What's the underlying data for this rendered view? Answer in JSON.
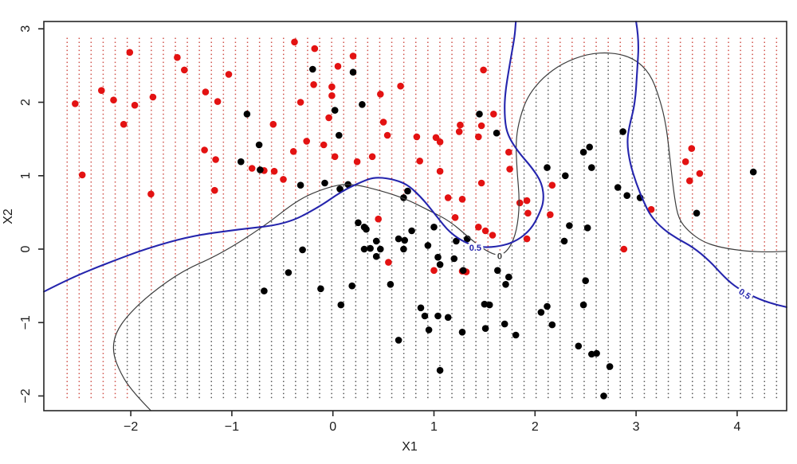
{
  "chart_data": {
    "type": "scatter",
    "description": "Two-class scatter plot with classification grid dots and two decision-boundary contours",
    "x_axis": {
      "label": "X1",
      "range": [
        -2.86,
        4.49
      ],
      "ticks": [
        -2,
        -1,
        0,
        1,
        2,
        3,
        4
      ],
      "tick_labels": [
        "−2",
        "−1",
        "0",
        "1",
        "2",
        "3",
        "4"
      ]
    },
    "y_axis": {
      "label": "X2",
      "range": [
        -2.2,
        3.1
      ],
      "ticks": [
        -2,
        -1,
        0,
        1,
        2,
        3
      ],
      "tick_labels": [
        "−2",
        "−1",
        "0",
        "1",
        "2",
        "3"
      ]
    },
    "grid": {
      "x0": -2.63,
      "x1": 4.39,
      "cols": 60,
      "y0": -2.02,
      "y1": 2.87,
      "rows": 91,
      "red_color": "#d0524a",
      "black_color": "#565656"
    },
    "series": [
      {
        "name": "class-red",
        "color": "#e31212",
        "points": [
          [
            -2.55,
            1.98
          ],
          [
            -2.48,
            1.01
          ],
          [
            -2.29,
            2.16
          ],
          [
            -2.17,
            2.03
          ],
          [
            -2.07,
            1.7
          ],
          [
            -2.01,
            2.68
          ],
          [
            -1.96,
            1.96
          ],
          [
            -1.8,
            0.75
          ],
          [
            -1.78,
            2.07
          ],
          [
            -1.54,
            2.61
          ],
          [
            -1.47,
            2.44
          ],
          [
            -1.27,
            1.35
          ],
          [
            -1.26,
            2.14
          ],
          [
            -1.17,
            0.8
          ],
          [
            -1.16,
            1.22
          ],
          [
            -1.14,
            2.01
          ],
          [
            -1.03,
            2.38
          ],
          [
            -0.8,
            1.1
          ],
          [
            -0.68,
            1.07
          ],
          [
            -0.58,
            1.06
          ],
          [
            -0.49,
            0.95
          ],
          [
            -0.59,
            1.7
          ],
          [
            -0.39,
            1.33
          ],
          [
            -0.38,
            2.82
          ],
          [
            -0.32,
            2.0
          ],
          [
            -0.26,
            1.47
          ],
          [
            -0.19,
            2.24
          ],
          [
            -0.18,
            2.73
          ],
          [
            -0.09,
            1.42
          ],
          [
            -0.04,
            1.79
          ],
          [
            -0.01,
            2.21
          ],
          [
            -0.01,
            2.09
          ],
          [
            0.02,
            1.26
          ],
          [
            0.05,
            2.49
          ],
          [
            0.2,
            2.63
          ],
          [
            0.24,
            1.19
          ],
          [
            0.39,
            1.26
          ],
          [
            0.45,
            0.41
          ],
          [
            0.47,
            2.11
          ],
          [
            0.5,
            1.73
          ],
          [
            0.54,
            1.55
          ],
          [
            0.55,
            -0.18
          ],
          [
            0.67,
            2.22
          ],
          [
            0.83,
            1.53
          ],
          [
            0.86,
            1.2
          ],
          [
            1.0,
            -0.29
          ],
          [
            1.02,
            1.52
          ],
          [
            1.06,
            1.46
          ],
          [
            1.06,
            1.06
          ],
          [
            1.14,
            0.7
          ],
          [
            1.21,
            0.43
          ],
          [
            1.25,
            1.6
          ],
          [
            1.26,
            1.69
          ],
          [
            1.28,
            0.68
          ],
          [
            1.28,
            -0.3
          ],
          [
            1.32,
            -0.31
          ],
          [
            1.44,
            1.53
          ],
          [
            1.44,
            0.3
          ],
          [
            1.47,
            1.68
          ],
          [
            1.47,
            0.9
          ],
          [
            1.49,
            2.44
          ],
          [
            1.51,
            0.25
          ],
          [
            1.58,
            0.19
          ],
          [
            1.59,
            1.84
          ],
          [
            1.74,
            1.32
          ],
          [
            1.75,
            1.09
          ],
          [
            1.85,
            0.63
          ],
          [
            1.92,
            0.66
          ],
          [
            1.93,
            0.49
          ],
          [
            1.92,
            0.14
          ],
          [
            2.15,
            0.47
          ],
          [
            2.17,
            0.87
          ],
          [
            2.88,
            0.0
          ],
          [
            3.15,
            0.54
          ],
          [
            3.49,
            1.19
          ],
          [
            3.53,
            0.93
          ],
          [
            3.55,
            1.37
          ],
          [
            3.63,
            1.03
          ]
        ]
      },
      {
        "name": "class-black",
        "color": "#000000",
        "points": [
          [
            -0.91,
            1.19
          ],
          [
            -0.85,
            1.84
          ],
          [
            -0.73,
            1.42
          ],
          [
            -0.72,
            1.08
          ],
          [
            -0.32,
            0.87
          ],
          [
            -0.2,
            2.45
          ],
          [
            -0.08,
            0.9
          ],
          [
            0.02,
            1.89
          ],
          [
            0.06,
            1.55
          ],
          [
            0.07,
            0.82
          ],
          [
            0.15,
            0.88
          ],
          [
            0.2,
            2.41
          ],
          [
            0.29,
            1.97
          ],
          [
            0.25,
            0.36
          ],
          [
            0.31,
            0.3
          ],
          [
            0.33,
            0.27
          ],
          [
            0.43,
            0.11
          ],
          [
            0.47,
            0.0
          ],
          [
            0.37,
            0.01
          ],
          [
            0.31,
            0.0
          ],
          [
            0.43,
            -0.1
          ],
          [
            0.57,
            -0.48
          ],
          [
            0.65,
            0.14
          ],
          [
            0.7,
            0.7
          ],
          [
            0.71,
            0.12
          ],
          [
            0.74,
            0.79
          ],
          [
            0.78,
            0.25
          ],
          [
            0.7,
            0.0
          ],
          [
            0.65,
            -1.24
          ],
          [
            0.87,
            -0.8
          ],
          [
            0.91,
            -0.91
          ],
          [
            0.94,
            0.05
          ],
          [
            0.95,
            -1.1
          ],
          [
            1.0,
            0.3
          ],
          [
            1.04,
            -0.11
          ],
          [
            1.06,
            -0.21
          ],
          [
            1.04,
            -0.91
          ],
          [
            1.06,
            -1.65
          ],
          [
            1.14,
            -0.93
          ],
          [
            1.2,
            -0.13
          ],
          [
            1.22,
            0.11
          ],
          [
            1.29,
            -0.29
          ],
          [
            1.28,
            -1.13
          ],
          [
            1.33,
            0.14
          ],
          [
            1.45,
            1.84
          ],
          [
            1.5,
            -0.75
          ],
          [
            1.51,
            -1.08
          ],
          [
            1.55,
            -0.76
          ],
          [
            1.62,
            1.58
          ],
          [
            1.63,
            -0.29
          ],
          [
            1.71,
            -0.48
          ],
          [
            1.7,
            -1.02
          ],
          [
            1.74,
            -0.38
          ],
          [
            1.81,
            -1.17
          ],
          [
            2.12,
            1.11
          ],
          [
            2.3,
            1.0
          ],
          [
            2.54,
            1.39
          ],
          [
            2.48,
            1.32
          ],
          [
            2.56,
            1.11
          ],
          [
            2.82,
            0.84
          ],
          [
            2.91,
            0.73
          ],
          [
            3.04,
            0.7
          ],
          [
            2.87,
            1.6
          ],
          [
            2.34,
            0.32
          ],
          [
            2.52,
            0.29
          ],
          [
            2.29,
            0.11
          ],
          [
            2.5,
            -0.43
          ],
          [
            2.48,
            -0.76
          ],
          [
            2.12,
            -0.78
          ],
          [
            2.06,
            -0.86
          ],
          [
            2.17,
            -1.03
          ],
          [
            2.43,
            -1.32
          ],
          [
            2.56,
            -1.43
          ],
          [
            2.61,
            -1.42
          ],
          [
            2.74,
            -1.6
          ],
          [
            2.68,
            -2.0
          ],
          [
            3.6,
            0.49
          ],
          [
            4.16,
            1.05
          ],
          [
            -0.44,
            -0.32
          ],
          [
            -0.68,
            -0.57
          ],
          [
            -0.3,
            -0.01
          ],
          [
            -0.12,
            -0.54
          ],
          [
            0.19,
            -0.5
          ],
          [
            0.08,
            -0.76
          ]
        ]
      }
    ],
    "contours": [
      {
        "name": "blue-boundary",
        "color": "#2525ad",
        "width": 2.1,
        "labels": [
          {
            "text": "0.5",
            "x": 1.41,
            "y": 0.02,
            "rot": 0
          },
          {
            "text": "0.5",
            "x": 4.06,
            "y": -0.6,
            "rot": 33
          }
        ],
        "paths": [
          [
            [
              -2.86,
              -0.58
            ],
            [
              -2.59,
              -0.39
            ],
            [
              -2.23,
              -0.19
            ],
            [
              -1.84,
              0.01
            ],
            [
              -1.4,
              0.18
            ],
            [
              -0.93,
              0.27
            ],
            [
              -0.46,
              0.34
            ],
            [
              -0.14,
              0.57
            ],
            [
              0.09,
              0.79
            ],
            [
              0.29,
              0.92
            ],
            [
              0.41,
              0.98
            ],
            [
              0.57,
              0.96
            ],
            [
              0.73,
              0.89
            ],
            [
              0.88,
              0.7
            ],
            [
              1.03,
              0.44
            ],
            [
              1.16,
              0.22
            ],
            [
              1.32,
              0.08
            ],
            [
              1.47,
              0.02
            ],
            [
              1.67,
              0.04
            ],
            [
              1.83,
              0.12
            ],
            [
              1.96,
              0.27
            ],
            [
              2.04,
              0.47
            ],
            [
              2.09,
              0.66
            ],
            [
              2.07,
              0.9
            ],
            [
              1.97,
              1.11
            ],
            [
              1.83,
              1.33
            ],
            [
              1.73,
              1.55
            ],
            [
              1.7,
              1.76
            ],
            [
              1.7,
              2.09
            ],
            [
              1.75,
              2.52
            ],
            [
              1.8,
              2.9
            ],
            [
              1.81,
              3.1
            ]
          ],
          [
            [
              3.0,
              3.1
            ],
            [
              3.03,
              2.85
            ],
            [
              3.01,
              2.41
            ],
            [
              2.99,
              1.98
            ],
            [
              2.93,
              1.66
            ],
            [
              2.91,
              1.44
            ],
            [
              2.94,
              1.17
            ],
            [
              3.0,
              0.9
            ],
            [
              3.08,
              0.63
            ],
            [
              3.15,
              0.44
            ],
            [
              3.27,
              0.27
            ],
            [
              3.41,
              0.14
            ],
            [
              3.56,
              0.03
            ],
            [
              3.72,
              -0.15
            ],
            [
              3.88,
              -0.39
            ],
            [
              4.0,
              -0.53
            ],
            [
              4.18,
              -0.66
            ],
            [
              4.34,
              -0.74
            ],
            [
              4.49,
              -0.79
            ]
          ]
        ]
      },
      {
        "name": "black-boundary",
        "color": "#3c3c3c",
        "width": 1.2,
        "labels": [
          {
            "text": "0",
            "x": 1.65,
            "y": -0.09,
            "rot": 0
          }
        ],
        "paths": [
          [
            [
              -1.8,
              -2.2
            ],
            [
              -2.0,
              -1.92
            ],
            [
              -2.13,
              -1.61
            ],
            [
              -2.18,
              -1.37
            ],
            [
              -2.15,
              -1.14
            ],
            [
              -2.03,
              -0.9
            ],
            [
              -1.8,
              -0.6
            ],
            [
              -1.48,
              -0.29
            ],
            [
              -1.13,
              -0.08
            ],
            [
              -0.69,
              0.3
            ],
            [
              -0.34,
              0.68
            ],
            [
              -0.06,
              0.84
            ],
            [
              0.17,
              0.9
            ],
            [
              0.49,
              0.79
            ],
            [
              0.73,
              0.68
            ],
            [
              0.96,
              0.52
            ],
            [
              1.16,
              0.38
            ],
            [
              1.36,
              0.14
            ],
            [
              1.51,
              -0.02
            ],
            [
              1.65,
              -0.1
            ],
            [
              1.75,
              0.01
            ],
            [
              1.82,
              0.25
            ],
            [
              1.85,
              0.63
            ],
            [
              1.82,
              1.11
            ],
            [
              1.81,
              1.49
            ],
            [
              1.85,
              1.79
            ],
            [
              1.93,
              2.09
            ],
            [
              2.08,
              2.34
            ],
            [
              2.27,
              2.53
            ],
            [
              2.52,
              2.66
            ],
            [
              2.76,
              2.68
            ],
            [
              2.98,
              2.6
            ],
            [
              3.14,
              2.39
            ],
            [
              3.23,
              2.07
            ],
            [
              3.3,
              1.68
            ],
            [
              3.34,
              1.17
            ],
            [
              3.38,
              0.7
            ],
            [
              3.42,
              0.41
            ],
            [
              3.52,
              0.24
            ],
            [
              3.66,
              0.1
            ],
            [
              3.84,
              0.02
            ],
            [
              4.1,
              -0.03
            ],
            [
              4.3,
              -0.04
            ],
            [
              4.49,
              -0.03
            ]
          ]
        ]
      }
    ],
    "region_close_points": [
      [
        4.49,
        -2.2
      ]
    ],
    "point_radius": 4.3,
    "axis_color": "#262626"
  }
}
